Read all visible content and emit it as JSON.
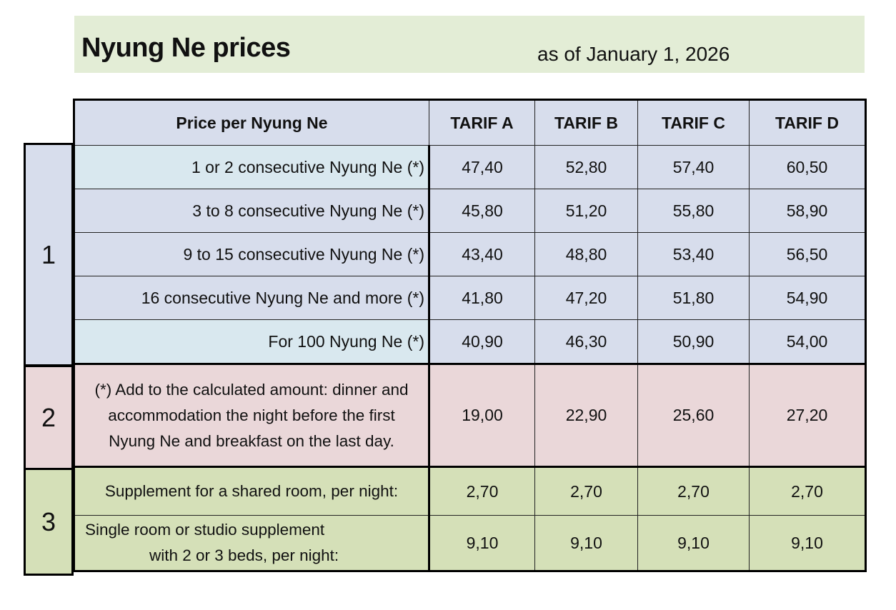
{
  "header": {
    "title": "Nyung Ne prices",
    "as_of": "as of January 1, 2026"
  },
  "groups": [
    "1",
    "2",
    "3"
  ],
  "table": {
    "columns": [
      "Price per Nyung Ne",
      "TARIF A",
      "TARIF B",
      "TARIF C",
      "TARIF D"
    ],
    "group1": [
      {
        "label": "1 or 2 consecutive Nyung Ne (*)",
        "values": [
          "47,40",
          "52,80",
          "57,40",
          "60,50"
        ]
      },
      {
        "label": "3 to 8 consecutive Nyung Ne (*)",
        "values": [
          "45,80",
          "51,20",
          "55,80",
          "58,90"
        ]
      },
      {
        "label": "9 to 15 consecutive Nyung Ne (*)",
        "values": [
          "43,40",
          "48,80",
          "53,40",
          "56,50"
        ]
      },
      {
        "label": "16 consecutive Nyung Ne and more (*)",
        "values": [
          "41,80",
          "47,20",
          "51,80",
          "54,90"
        ]
      },
      {
        "label": "For 100 Nyung Ne (*)",
        "values": [
          "40,90",
          "46,30",
          "50,90",
          "54,00"
        ]
      }
    ],
    "group2": {
      "label_lines": [
        "(*) Add to the calculated amount: dinner and",
        "accommodation the night before the first",
        "Nyung Ne and breakfast on the last day."
      ],
      "values": [
        "19,00",
        "22,90",
        "25,60",
        "27,20"
      ]
    },
    "group3": [
      {
        "label": "Supplement for a shared room, per night:",
        "values": [
          "2,70",
          "2,70",
          "2,70",
          "2,70"
        ]
      },
      {
        "label_lines": [
          "Single room or studio supplement",
          "with 2 or 3 beds, per night:"
        ],
        "values": [
          "9,10",
          "9,10",
          "9,10",
          "9,10"
        ]
      }
    ]
  },
  "colors": {
    "title_bg": "#e3edd6",
    "group1_bg": "#d7ddec",
    "group1_alt_bg": "#d9e8ef",
    "group2_bg": "#ead7d9",
    "group3_bg": "#d5e0b8"
  }
}
